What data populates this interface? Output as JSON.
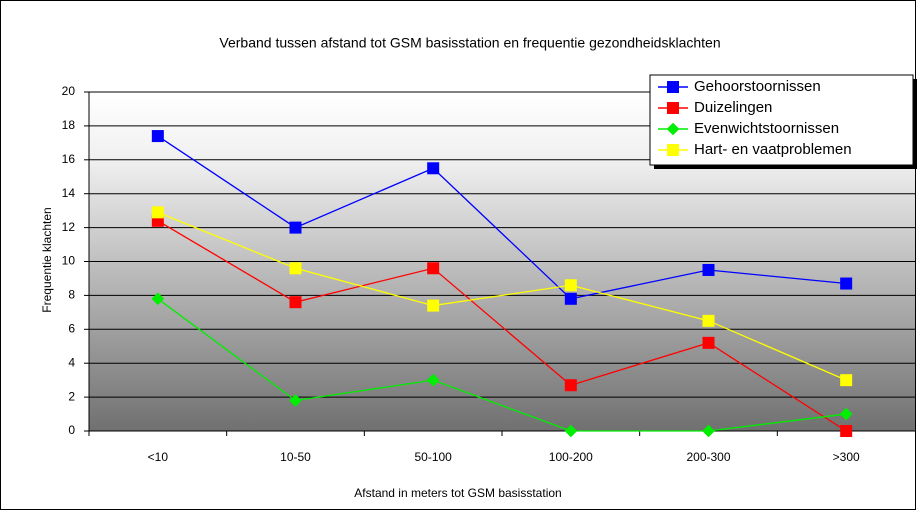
{
  "chart_data": {
    "type": "line",
    "title": "Verband tussen afstand tot GSM basisstation en frequentie gezondheidsklachten",
    "x_label": "Afstand in meters tot GSM basisstation",
    "y_label": "Frequentie klachten",
    "categories": [
      "<10",
      "10-50",
      "50-100",
      "100-200",
      "200-300",
      ">300"
    ],
    "series": [
      {
        "name": "Gehoorstoornissen",
        "color": "#0000ff",
        "marker": "square",
        "values": [
          17.4,
          12.0,
          15.5,
          7.8,
          9.5,
          8.7
        ]
      },
      {
        "name": "Duizelingen",
        "color": "#ff0000",
        "marker": "square",
        "values": [
          12.4,
          7.6,
          9.6,
          2.7,
          5.2,
          0
        ]
      },
      {
        "name": "Evenwichtstoornissen",
        "color": "#00ee00",
        "marker": "diamond",
        "values": [
          7.8,
          1.8,
          3.0,
          0,
          0,
          1.0
        ]
      },
      {
        "name": "Hart- en vaatproblemen",
        "color": "#ffff00",
        "marker": "square",
        "values": [
          12.9,
          9.6,
          7.4,
          8.6,
          6.5,
          3.0
        ]
      }
    ],
    "ylim": [
      0,
      20
    ],
    "yticks": [
      0,
      2,
      4,
      6,
      8,
      10,
      12,
      14,
      16,
      18,
      20
    ],
    "grid": true
  }
}
